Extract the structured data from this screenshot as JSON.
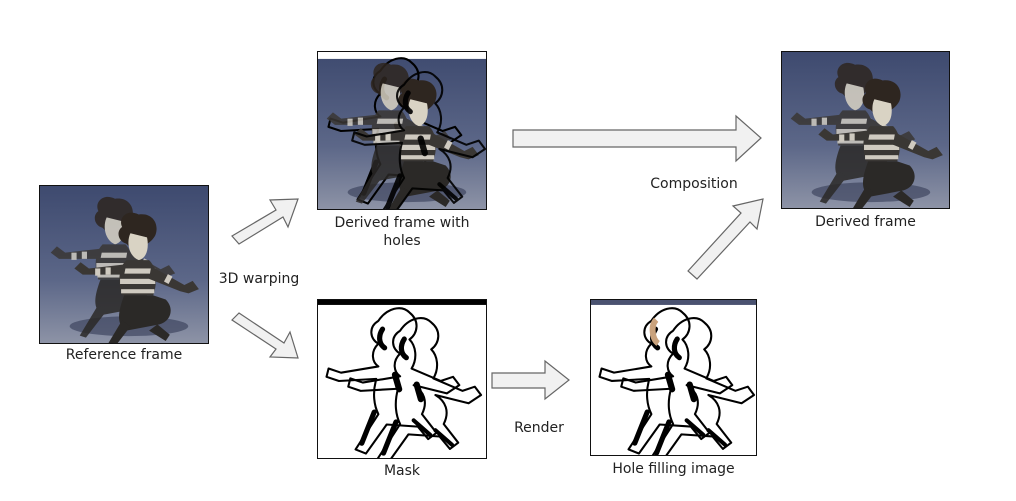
{
  "labels": {
    "reference": "Reference frame",
    "warping": "3D warping",
    "derived_holes": "Derived frame with\nholes",
    "mask": "Mask",
    "render": "Render",
    "hole_filling": "Hole filling image",
    "composition": "Composition",
    "derived": "Derived frame"
  },
  "colors": {
    "scene_top": "#3f4a6e",
    "scene_bottom": "#8c93a8",
    "arrow_fill": "#f1f1f1",
    "arrow_stroke": "#666666",
    "mask_ink": "#000000",
    "hole_white": "#ffffff"
  }
}
